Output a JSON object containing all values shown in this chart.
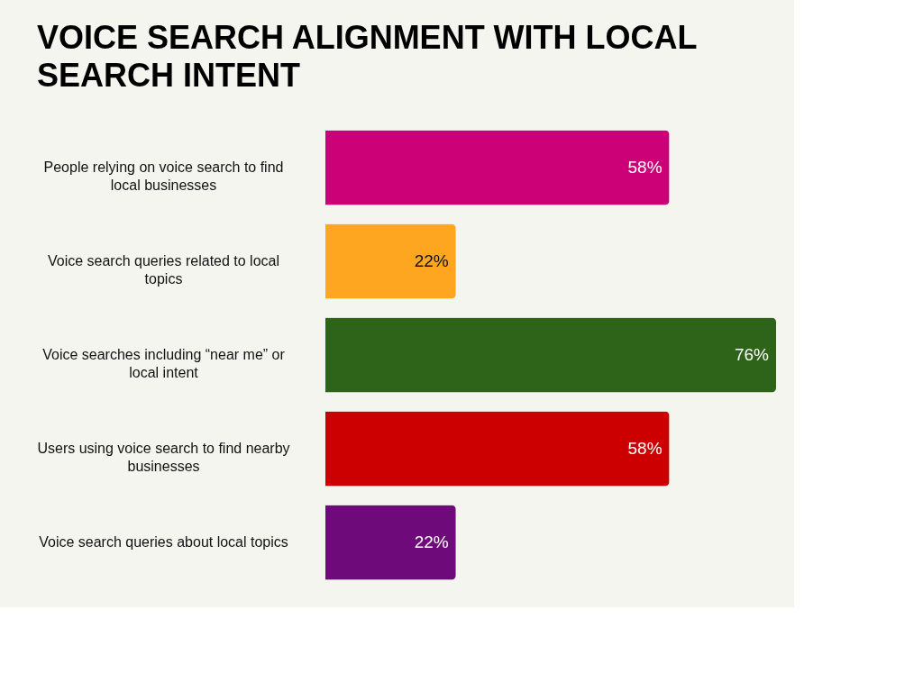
{
  "chart_data": {
    "type": "bar",
    "orientation": "horizontal",
    "title": "VOICE SEARCH ALIGNMENT WITH LOCAL SEARCH INTENT",
    "categories": [
      "People relying on voice search to find local businesses",
      "Voice search queries related to local topics",
      "Voice searches including “near me” or local intent",
      "Users using voice search to find nearby businesses",
      "Voice search queries about local topics"
    ],
    "values": [
      58,
      22,
      76,
      58,
      22
    ],
    "colors": [
      "#cc0077",
      "#ffa620",
      "#2e6419",
      "#cc0000",
      "#6e0a7a"
    ],
    "value_labels": [
      "58%",
      "22%",
      "76%",
      "58%",
      "22%"
    ]
  }
}
